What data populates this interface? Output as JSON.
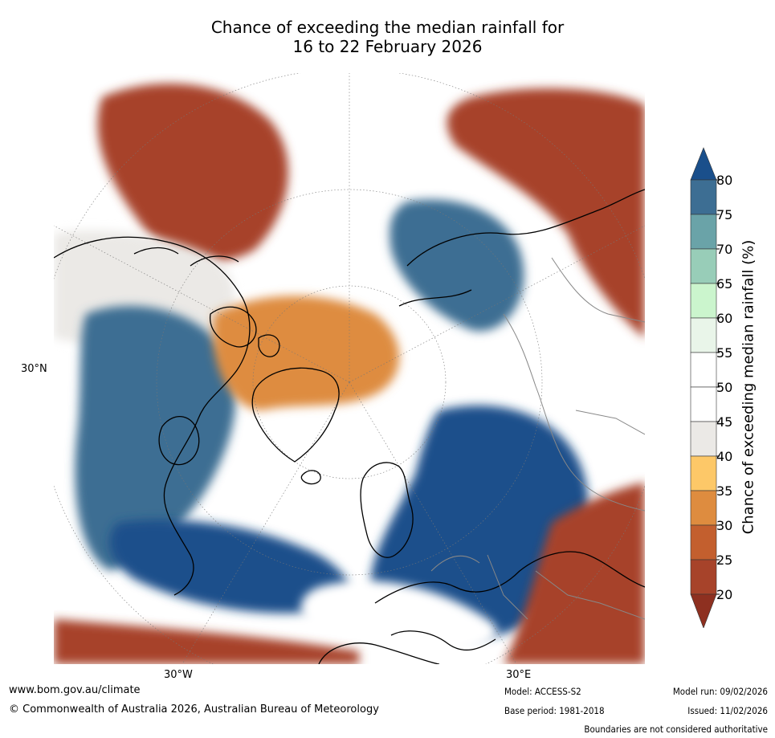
{
  "title": {
    "line1": "Chance of exceeding the median rainfall for",
    "line2": "16 to 22 February 2026"
  },
  "map": {
    "projection": "north-polar stereographic",
    "lat_label": "30°N",
    "lon_labels": [
      "30°W",
      "30°E"
    ],
    "regions": {
      "north_pacific_dry": 22,
      "alaska_mixed": 40,
      "canada_wet": 75,
      "greenland_dry": 30,
      "siberia_dry": 22,
      "north_atlantic_wet": 80,
      "scandinavia_wet": 78,
      "europe_wet": 80,
      "mediterranean": 50,
      "north_africa_dry": 20,
      "middle_east_dry": 22,
      "arctic_ocean": 50
    }
  },
  "colorbar": {
    "title": "Chance of exceeding median rainfall (%)",
    "ticks": [
      "80",
      "75",
      "70",
      "65",
      "60",
      "55",
      "50",
      "45",
      "40",
      "35",
      "30",
      "25",
      "20"
    ],
    "colors": {
      "above_80": "#1a4f8b",
      "b75_80": "#3d6e93",
      "b70_75": "#6aa3a8",
      "b65_70": "#98cdb8",
      "b60_65": "#cbf5cd",
      "b55_60": "#e9f5e9",
      "b50_55": "#ffffff",
      "b45_50": "#ffffff",
      "b40_45": "#ebe9e6",
      "b35_40": "#fdc868",
      "b30_35": "#de8c3f",
      "b25_30": "#c35f2e",
      "b20_25": "#a7432a",
      "below_20": "#8e3020"
    }
  },
  "footer": {
    "website": "www.bom.gov.au/climate",
    "copyright": "© Commonwealth of Australia 2026, Australian Bureau of Meteorology",
    "model": "Model: ACCESS-S2",
    "base_period": "Base period: 1981-2018",
    "model_run": "Model run: 09/02/2026",
    "issued": "Issued: 11/02/2026",
    "disclaimer": "Boundaries are not considered authoritative"
  }
}
